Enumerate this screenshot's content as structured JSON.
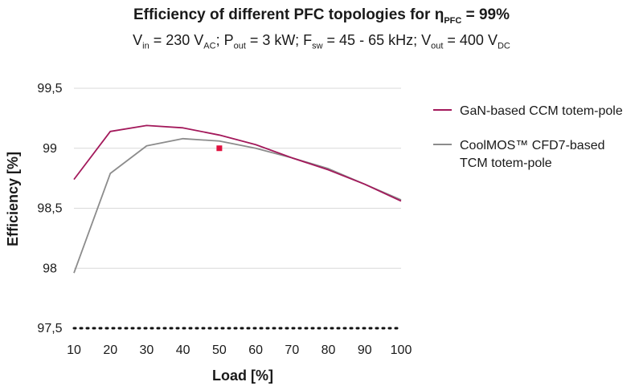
{
  "chart_data": {
    "type": "line",
    "title_parts": {
      "prefix": "Efficiency of different PFC topologies for η",
      "sub": "PFC",
      "suffix": " = 99%"
    },
    "subtitle_parts": [
      {
        "text": "V"
      },
      {
        "sub": "in"
      },
      {
        "text": " = 230 V"
      },
      {
        "sub": "AC"
      },
      {
        "text": "; P"
      },
      {
        "sub": "out"
      },
      {
        "text": " = 3 kW; F"
      },
      {
        "sub": "sw"
      },
      {
        "text": " = 45 - 65 kHz; V"
      },
      {
        "sub": "out"
      },
      {
        "text": " = 400 V"
      },
      {
        "sub": "DC"
      }
    ],
    "xlabel": "Load [%]",
    "ylabel": "Efficiency [%]",
    "x": [
      10,
      20,
      30,
      40,
      50,
      60,
      70,
      80,
      90,
      100
    ],
    "xticks": [
      "10",
      "20",
      "30",
      "40",
      "50",
      "60",
      "70",
      "80",
      "90",
      "100"
    ],
    "yticks": [
      {
        "value": 99.5,
        "label": "99,5"
      },
      {
        "value": 99.0,
        "label": "99"
      },
      {
        "value": 98.5,
        "label": "98,5"
      },
      {
        "value": 98.0,
        "label": "98"
      },
      {
        "value": 97.5,
        "label": "97,5"
      }
    ],
    "xlim": [
      10,
      100
    ],
    "ylim": [
      97.5,
      99.5
    ],
    "grid": "horizontal",
    "legend_position": "right",
    "series": [
      {
        "name_lines": [
          "GaN-based CCM totem-pole"
        ],
        "color": "#a3195b",
        "values": [
          98.74,
          99.14,
          99.19,
          99.17,
          99.11,
          99.03,
          98.92,
          98.82,
          98.7,
          98.56
        ]
      },
      {
        "name_lines": [
          "CoolMOS™ CFD7-based",
          "TCM totem-pole"
        ],
        "color": "#8c8c8c",
        "values": [
          97.96,
          98.79,
          99.02,
          99.08,
          99.06,
          99.0,
          98.92,
          98.83,
          98.7,
          98.57
        ]
      }
    ],
    "marker": {
      "x": 50,
      "y": 99.0,
      "color": "#e0103e"
    }
  }
}
